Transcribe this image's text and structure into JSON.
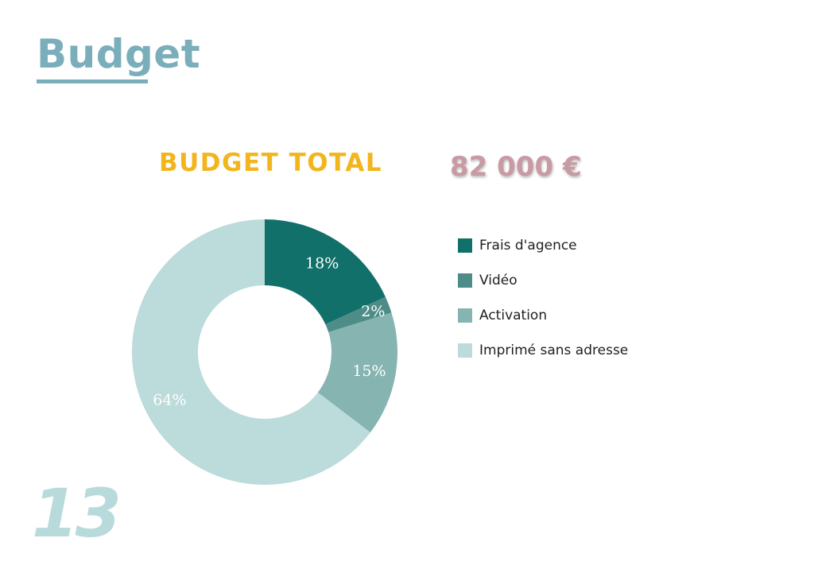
{
  "page": {
    "title": "Budget",
    "page_number": "13"
  },
  "budget": {
    "total_label": "BUDGET TOTAL",
    "total_value": "82 000 €"
  },
  "colors": {
    "title": "#7aaebb",
    "total_label": "#f2b51c",
    "total_value": "#c89aa3",
    "page_number": "#b8dadb",
    "label_dark_bg": "#ffffff",
    "label_light_bg": "#ffffff"
  },
  "chart_data": {
    "type": "pie",
    "style": "donut",
    "title": "",
    "categories": [
      "Frais d'agence",
      "Vidéo",
      "Activation",
      "Imprimé sans adresse"
    ],
    "values": [
      18,
      2,
      15,
      64
    ],
    "value_labels": [
      "18%",
      "2%",
      "15%",
      "64%"
    ],
    "unit": "%",
    "colors": [
      "#12706a",
      "#4e8c88",
      "#86b4b1",
      "#bcdbdb"
    ],
    "legend_position": "right",
    "series": [
      {
        "values": [
          18,
          2,
          15,
          64
        ]
      }
    ]
  }
}
